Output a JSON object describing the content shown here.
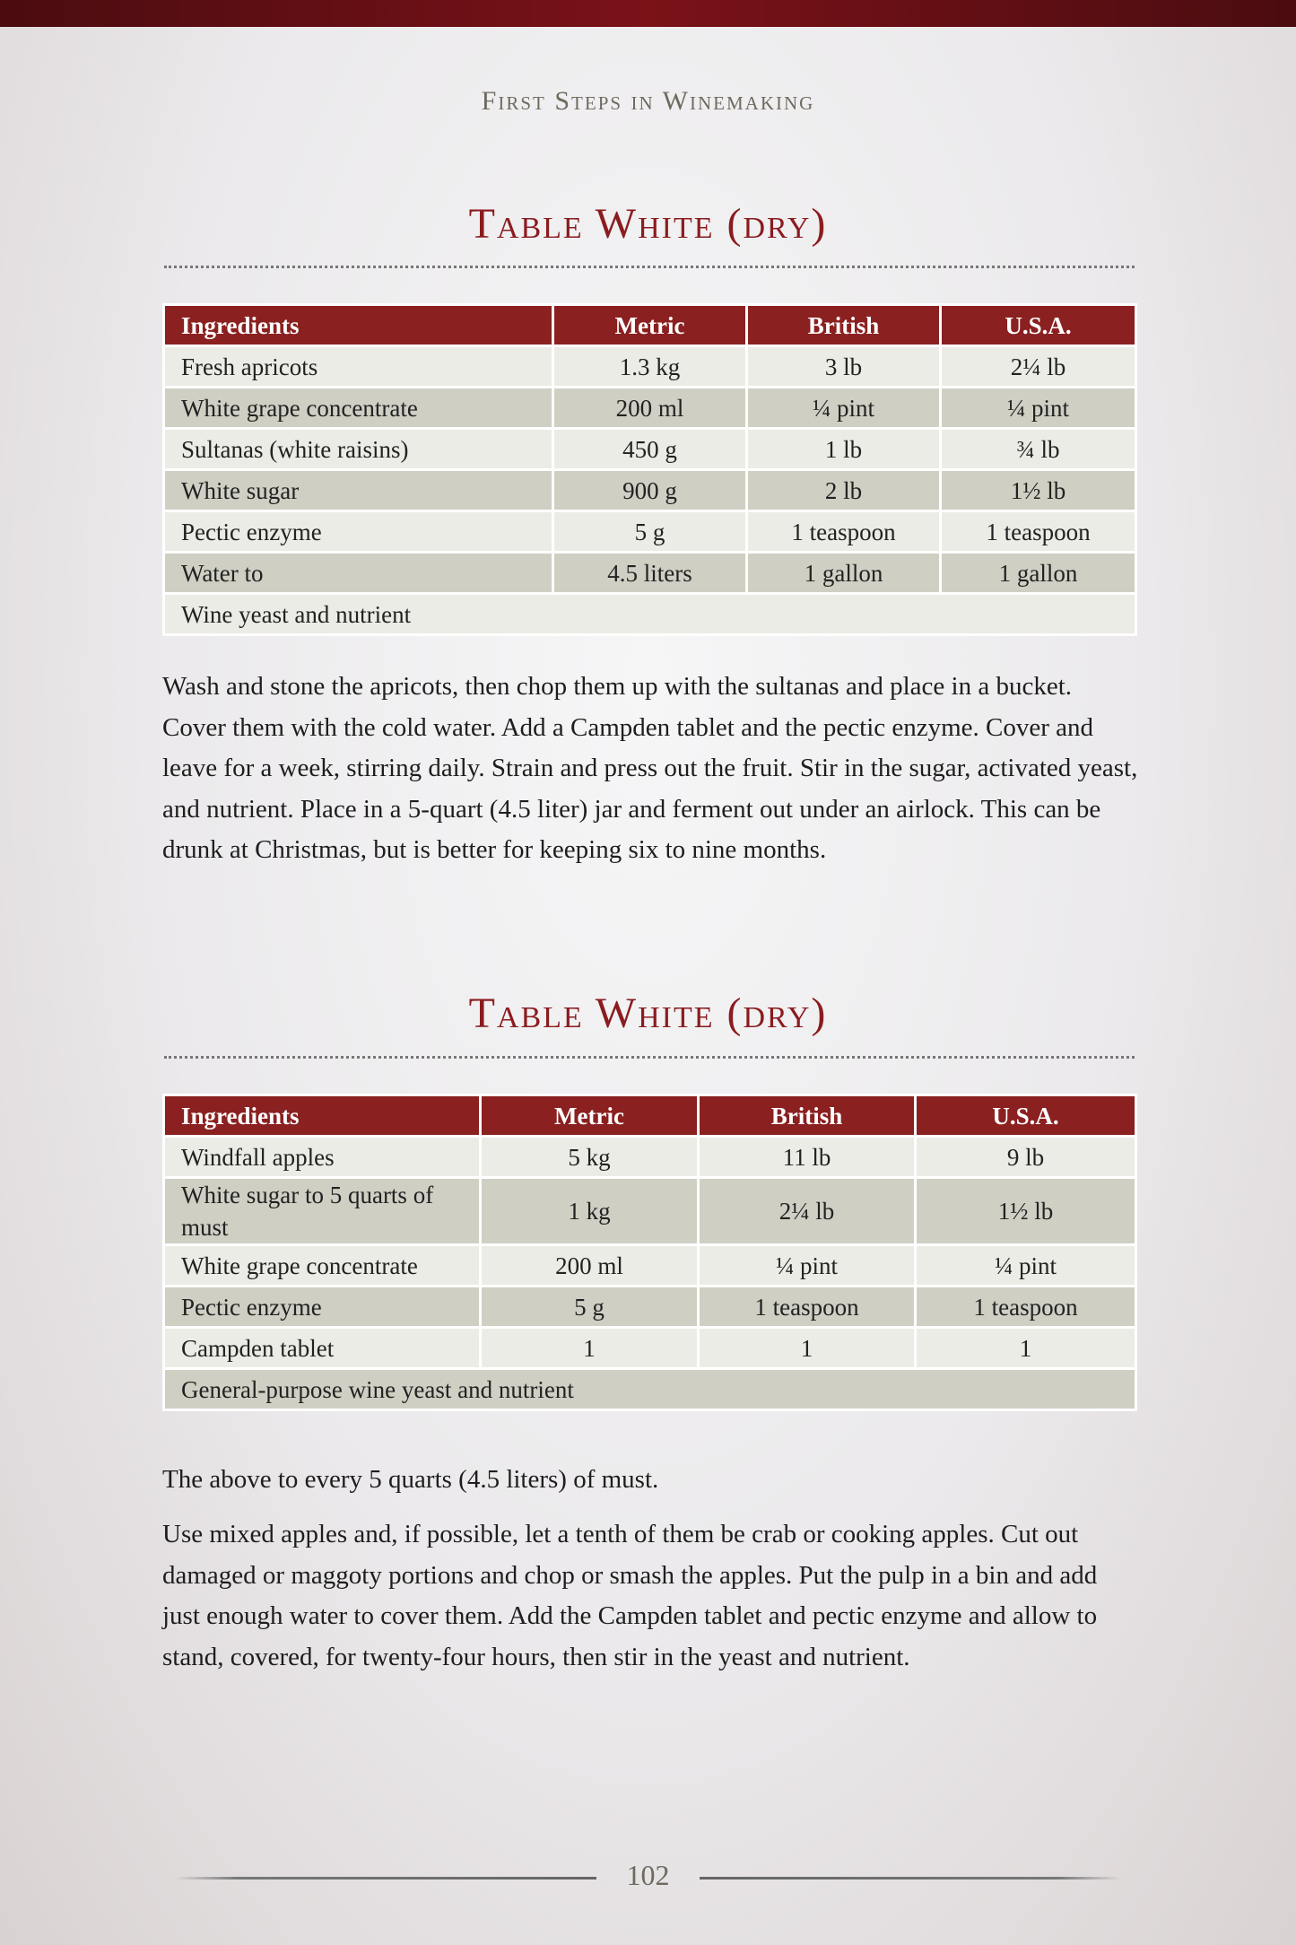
{
  "running_header": "First Steps in Winemaking",
  "recipes": [
    {
      "title": "Table White (dry)",
      "headers": [
        "Ingredients",
        "Metric",
        "British",
        "U.S.A."
      ],
      "rows": [
        [
          "Fresh apricots",
          "1.3 kg",
          "3 lb",
          "2¼ lb"
        ],
        [
          "White grape concentrate",
          "200 ml",
          "¼ pint",
          "¼ pint"
        ],
        [
          "Sultanas (white raisins)",
          "450 g",
          "1 lb",
          "¾ lb"
        ],
        [
          "White sugar",
          "900 g",
          "2 lb",
          "1½ lb"
        ],
        [
          "Pectic enzyme",
          "5 g",
          "1 teaspoon",
          "1 teaspoon"
        ],
        [
          "Water to",
          "4.5 liters",
          "1 gallon",
          "1 gallon"
        ]
      ],
      "footer_row": "Wine yeast and nutrient",
      "paragraphs": [
        "Wash and stone the apricots, then chop them up with the sultanas and place in a bucket. Cover them with the cold water. Add a Campden tablet and the pectic enzyme. Cover and leave for a week, stirring daily. Strain and press out the fruit. Stir in the sugar, activated yeast, and nutrient. Place in a 5-quart (4.5 liter) jar and ferment out under an airlock. This can be drunk at Christmas, but is better for keeping six to nine months."
      ]
    },
    {
      "title": "Table White (dry)",
      "headers": [
        "Ingredients",
        "Metric",
        "British",
        "U.S.A."
      ],
      "rows": [
        [
          "Windfall apples",
          "5 kg",
          "11 lb",
          "9 lb"
        ],
        [
          "White sugar to 5 quarts of must",
          "1 kg",
          "2¼ lb",
          "1½ lb"
        ],
        [
          "White grape concentrate",
          "200 ml",
          "¼ pint",
          "¼ pint"
        ],
        [
          "Pectic enzyme",
          "5 g",
          "1 teaspoon",
          "1 teaspoon"
        ],
        [
          "Campden tablet",
          "1",
          "1",
          "1"
        ]
      ],
      "footer_row": "General-purpose wine yeast and nutrient",
      "paragraphs": [
        "The above to every 5 quarts (4.5 liters) of must.",
        "Use mixed apples and, if possible, let a tenth of them be crab or cooking apples. Cut out damaged or maggoty portions and chop or smash the apples. Put the pulp in a bin and add just enough water to cover them. Add the Campden tablet and pectic enzyme and allow to stand, covered, for twenty-four hours, then stir in the yeast and nutrient."
      ]
    }
  ],
  "page_number": "102",
  "colors": {
    "accent": "#8b2020",
    "row_light": "#ecece6",
    "row_dark": "#cfcfc4"
  }
}
